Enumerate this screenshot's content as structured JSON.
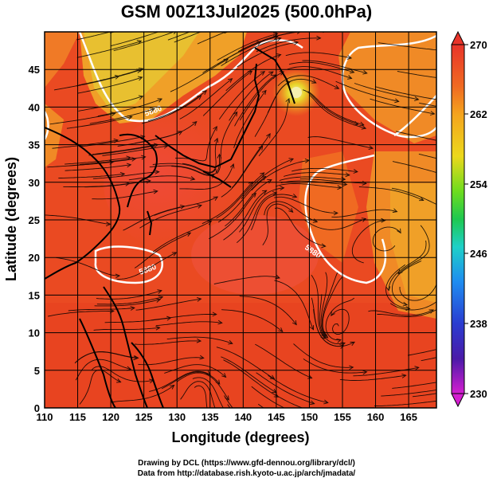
{
  "title": "GSM 00Z13Jul2025 (500.0hPa)",
  "x_axis": {
    "label": "Longitude (degrees)",
    "ticks": [
      "110",
      "115",
      "120",
      "125",
      "130",
      "135",
      "140",
      "145",
      "150",
      "155",
      "160",
      "165"
    ]
  },
  "y_axis": {
    "label": "Latitude  (degrees)",
    "ticks": [
      "0",
      "5",
      "10",
      "15",
      "20",
      "25",
      "30",
      "35",
      "40",
      "45"
    ]
  },
  "colorbar": {
    "labels": [
      "270",
      "262",
      "254",
      "246",
      "238",
      "230"
    ],
    "colors": [
      "#e8342a",
      "#f08a1e",
      "#f4d21c",
      "#7fe01e",
      "#1ec850",
      "#1ed0c8",
      "#1e8cf0",
      "#2a3cd0",
      "#3a1aa0",
      "#c81ec8"
    ]
  },
  "contour_labels": [
    "5880",
    "5880",
    "5880"
  ],
  "credits": {
    "line1": "Drawing by DCL (https://www.gfd-dennou.org/library/dcl/)",
    "line2": "Data from http://database.rish.kyoto-u.ac.jp/arch/jmadata/"
  }
}
